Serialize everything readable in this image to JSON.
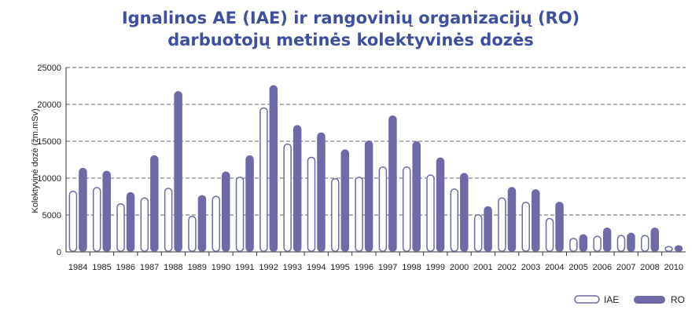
{
  "chart_data": {
    "type": "bar",
    "title": "Ignalinos AE (IAE) ir rangovinių organizacijų (RO)",
    "subtitle": "darbuotojų metinės kolektyvinės dozės",
    "xlabel": "",
    "ylabel": "Kolektyvinė dozė (žm.mSv)",
    "ylim": [
      0,
      25000
    ],
    "yticks": [
      0,
      5000,
      10000,
      15000,
      20000,
      25000
    ],
    "grid": true,
    "legend_position": "bottom-right",
    "categories": [
      "1984",
      "1985",
      "1986",
      "1987",
      "1988",
      "1989",
      "1990",
      "1991",
      "1992",
      "1993",
      "1994",
      "1995",
      "1996",
      "1997",
      "1998",
      "1999",
      "2000",
      "2001",
      "2002",
      "2003",
      "2004",
      "2005",
      "2006",
      "2007",
      "2008",
      "2010"
    ],
    "series": [
      {
        "name": "IAE",
        "style": "outline",
        "color": "#6e6aa8",
        "values": [
          8300,
          8800,
          6600,
          7400,
          8700,
          4900,
          7600,
          10200,
          19600,
          14700,
          12900,
          10000,
          10200,
          11600,
          11600,
          10500,
          8600,
          5100,
          7400,
          6800,
          4600,
          1900,
          2200,
          2300,
          2300,
          800
        ]
      },
      {
        "name": "RO",
        "style": "filled",
        "color": "#6e6aa8",
        "values": [
          11400,
          11000,
          8100,
          13100,
          21800,
          7700,
          10900,
          13100,
          22600,
          17200,
          16200,
          13900,
          15100,
          18500,
          15000,
          12800,
          10700,
          6200,
          8800,
          8500,
          6800,
          2400,
          3300,
          2600,
          3300,
          900
        ]
      }
    ]
  }
}
